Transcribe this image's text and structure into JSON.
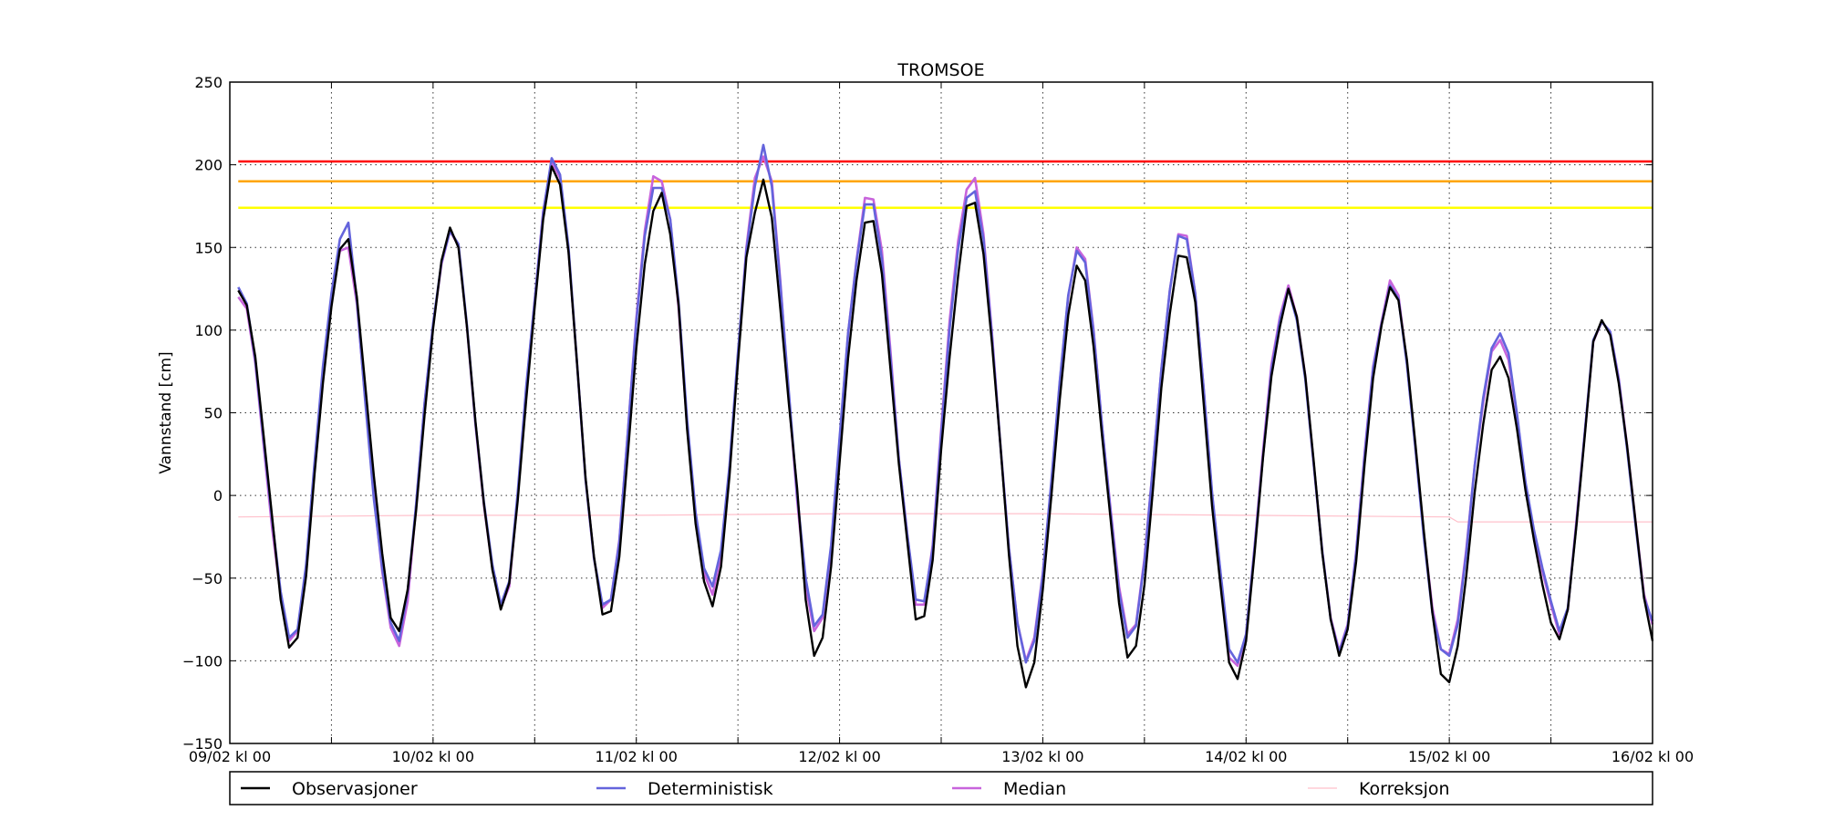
{
  "chart_data": {
    "type": "line",
    "title": "TROMSOE",
    "xlabel": "",
    "ylabel": "Vannstand [cm]",
    "ylim": [
      -150,
      250
    ],
    "xlim": [
      0,
      168
    ],
    "yticks": [
      -150,
      -100,
      -50,
      0,
      50,
      100,
      150,
      200,
      250
    ],
    "xticks": [
      0,
      24,
      48,
      72,
      96,
      120,
      144,
      168
    ],
    "xtick_labels": [
      "09/02 kl 00",
      "10/02 kl 00",
      "11/02 kl 00",
      "12/02 kl 00",
      "13/02 kl 00",
      "14/02 kl 00",
      "15/02 kl 00",
      "16/02 kl 00"
    ],
    "minor_xgrid": [
      12,
      36,
      60,
      84,
      108,
      132,
      156
    ],
    "grid": true,
    "legend_placement": "bottom",
    "thresholds": [
      {
        "value": 202,
        "color": "#ff0000"
      },
      {
        "value": 190,
        "color": "#ffa500"
      },
      {
        "value": 174,
        "color": "#ffff00"
      }
    ],
    "series": [
      {
        "name": "Observasjoner",
        "color": "#000000",
        "x": [
          1,
          2,
          3,
          4,
          5,
          6,
          7,
          8,
          9,
          10,
          11,
          12,
          13,
          14,
          15,
          16,
          17,
          18,
          19,
          20,
          21,
          22,
          23,
          24,
          25,
          26,
          27,
          28,
          29,
          30,
          31,
          32,
          33,
          34,
          35,
          36,
          37,
          38,
          39,
          40,
          41,
          42,
          43,
          44,
          45,
          46,
          47,
          48,
          49,
          50,
          51,
          52,
          53,
          54,
          55,
          56,
          57,
          58,
          59,
          60,
          61,
          62,
          63,
          64,
          65,
          66,
          67,
          68,
          69,
          70,
          71,
          72,
          73,
          74,
          75,
          76,
          77,
          78,
          79,
          80,
          81,
          82,
          83,
          84,
          85,
          86,
          87,
          88,
          89,
          90,
          91,
          92,
          93,
          94,
          95,
          96,
          97,
          98,
          99,
          100,
          101,
          102,
          103,
          104,
          105,
          106,
          107,
          108,
          109,
          110,
          111,
          112,
          113,
          114,
          115,
          116,
          117,
          118,
          119,
          120,
          121,
          122,
          123,
          124,
          125,
          126,
          127,
          128,
          129,
          130,
          131,
          132,
          133,
          134,
          135,
          136,
          137,
          138,
          139,
          140,
          141,
          142,
          143,
          144,
          145,
          146,
          147,
          148,
          149,
          150,
          151,
          152,
          153,
          154,
          155,
          156,
          157,
          158,
          159,
          160,
          161,
          162,
          163,
          164,
          165,
          166,
          167,
          168
        ],
        "values": [
          124,
          115,
          84,
          36,
          -13,
          -63,
          -92,
          -86,
          -49,
          13,
          68,
          114,
          149,
          155,
          120,
          66,
          12,
          -35,
          -74,
          -82,
          -57,
          -9,
          49,
          101,
          142,
          162,
          150,
          102,
          45,
          -5,
          -45,
          -69,
          -53,
          -3,
          58,
          114,
          167,
          199,
          188,
          147,
          80,
          11,
          -37,
          -72,
          -70,
          -37,
          25,
          89,
          140,
          172,
          183,
          158,
          115,
          40,
          -17,
          -52,
          -67,
          -43,
          12,
          80,
          144,
          171,
          191,
          168,
          113,
          56,
          4,
          -63,
          -97,
          -86,
          -43,
          20,
          83,
          130,
          165,
          166,
          134,
          77,
          19,
          -28,
          -75,
          -73,
          -39,
          28,
          84,
          133,
          175,
          177,
          146,
          92,
          30,
          -36,
          -91,
          -116,
          -101,
          -57,
          -1,
          58,
          109,
          139,
          130,
          90,
          36,
          -14,
          -65,
          -98,
          -91,
          -54,
          3,
          65,
          110,
          145,
          144,
          117,
          55,
          -7,
          -55,
          -101,
          -111,
          -88,
          -35,
          23,
          72,
          102,
          125,
          108,
          72,
          20,
          -35,
          -75,
          -97,
          -81,
          -40,
          19,
          71,
          103,
          126,
          118,
          82,
          31,
          -22,
          -71,
          -108,
          -113,
          -91,
          -49,
          2,
          43,
          76,
          84,
          71,
          40,
          3,
          -27,
          -54,
          -77,
          -87,
          -69,
          -19,
          36,
          93,
          106,
          97,
          68,
          30,
          -16,
          -62,
          -88
        ]
      },
      {
        "name": "Deterministisk",
        "color": "#6464dc",
        "x": [
          1,
          2,
          3,
          4,
          5,
          6,
          7,
          8,
          9,
          10,
          11,
          12,
          13,
          14,
          15,
          16,
          17,
          18,
          19,
          20,
          21,
          22,
          23,
          24,
          25,
          26,
          27,
          28,
          29,
          30,
          31,
          32,
          33,
          34,
          35,
          36,
          37,
          38,
          39,
          40,
          41,
          42,
          43,
          44,
          45,
          46,
          47,
          48,
          49,
          50,
          51,
          52,
          53,
          54,
          55,
          56,
          57,
          58,
          59,
          60,
          61,
          62,
          63,
          64,
          65,
          66,
          67,
          68,
          69,
          70,
          71,
          72,
          73,
          74,
          75,
          76,
          77,
          78,
          79,
          80,
          81,
          82,
          83,
          84,
          85,
          86,
          87,
          88,
          89,
          90,
          91,
          92,
          93,
          94,
          95,
          96,
          97,
          98,
          99,
          100,
          101,
          102,
          103,
          104,
          105,
          106,
          107,
          108,
          109,
          110,
          111,
          112,
          113,
          114,
          115,
          116,
          117,
          118,
          119,
          120,
          121,
          122,
          123,
          124,
          125,
          126,
          127,
          128,
          129,
          130,
          131,
          132,
          133,
          134,
          135,
          136,
          137,
          138,
          139,
          140,
          141,
          142,
          143,
          144,
          145,
          146,
          147,
          148,
          149,
          150,
          151,
          152,
          153,
          154,
          155,
          156,
          157,
          158,
          159,
          160,
          161,
          162,
          163,
          164,
          165,
          166,
          167,
          168
        ],
        "values": [
          126,
          116,
          82,
          33,
          -15,
          -58,
          -86,
          -81,
          -42,
          20,
          78,
          122,
          155,
          165,
          118,
          56,
          -2,
          -44,
          -77,
          -88,
          -58,
          -5,
          56,
          104,
          141,
          160,
          152,
          103,
          44,
          -4,
          -42,
          -66,
          -52,
          2,
          66,
          118,
          171,
          204,
          194,
          150,
          80,
          10,
          -38,
          -66,
          -63,
          -28,
          38,
          105,
          157,
          186,
          186,
          167,
          117,
          46,
          -10,
          -44,
          -55,
          -33,
          18,
          86,
          148,
          187,
          212,
          187,
          128,
          63,
          0,
          -50,
          -79,
          -72,
          -30,
          35,
          98,
          141,
          176,
          176,
          143,
          84,
          22,
          -24,
          -63,
          -64,
          -32,
          37,
          101,
          149,
          180,
          184,
          155,
          96,
          30,
          -32,
          -77,
          -101,
          -88,
          -48,
          8,
          69,
          121,
          148,
          141,
          99,
          42,
          -10,
          -58,
          -86,
          -79,
          -40,
          17,
          76,
          124,
          157,
          155,
          122,
          64,
          1,
          -47,
          -93,
          -101,
          -84,
          -32,
          24,
          76,
          106,
          125,
          106,
          70,
          18,
          -34,
          -75,
          -95,
          -79,
          -35,
          24,
          77,
          104,
          127,
          119,
          79,
          28,
          -26,
          -71,
          -93,
          -97,
          -78,
          -35,
          18,
          59,
          89,
          98,
          86,
          49,
          8,
          -21,
          -44,
          -64,
          -82,
          -68,
          -18,
          38,
          94,
          105,
          99,
          70,
          28,
          -18,
          -62,
          -76
        ]
      },
      {
        "name": "Median",
        "color": "#c864dc",
        "x": [
          1,
          2,
          3,
          4,
          5,
          6,
          7,
          8,
          9,
          10,
          11,
          12,
          13,
          14,
          15,
          16,
          17,
          18,
          19,
          20,
          21,
          22,
          23,
          24,
          25,
          26,
          27,
          28,
          29,
          30,
          31,
          32,
          33,
          34,
          35,
          36,
          37,
          38,
          39,
          40,
          41,
          42,
          43,
          44,
          45,
          46,
          47,
          48,
          49,
          50,
          51,
          52,
          53,
          54,
          55,
          56,
          57,
          58,
          59,
          60,
          61,
          62,
          63,
          64,
          65,
          66,
          67,
          68,
          69,
          70,
          71,
          72,
          73,
          74,
          75,
          76,
          77,
          78,
          79,
          80,
          81,
          82,
          83,
          84,
          85,
          86,
          87,
          88,
          89,
          90,
          91,
          92,
          93,
          94,
          95,
          96,
          97,
          98,
          99,
          100,
          101,
          102,
          103,
          104,
          105,
          106,
          107,
          108,
          109,
          110,
          111,
          112,
          113,
          114,
          115,
          116,
          117,
          118,
          119,
          120,
          121,
          122,
          123,
          124,
          125,
          126,
          127,
          128,
          129,
          130,
          131,
          132,
          133,
          134,
          135,
          136,
          137,
          138,
          139,
          140,
          141,
          142,
          143,
          144,
          145,
          146,
          147,
          148,
          149,
          150,
          151,
          152,
          153,
          154,
          155,
          156,
          157,
          158,
          159,
          160,
          161,
          162,
          163,
          164,
          165,
          166,
          167,
          168
        ],
        "values": [
          120,
          113,
          80,
          30,
          -20,
          -60,
          -88,
          -82,
          -45,
          18,
          74,
          120,
          148,
          150,
          116,
          58,
          0,
          -46,
          -80,
          -91,
          -64,
          -6,
          56,
          103,
          140,
          160,
          151,
          102,
          43,
          -6,
          -44,
          -68,
          -55,
          0,
          64,
          118,
          172,
          202,
          192,
          148,
          80,
          10,
          -38,
          -68,
          -63,
          -27,
          38,
          107,
          160,
          193,
          190,
          167,
          113,
          42,
          -12,
          -47,
          -60,
          -36,
          14,
          84,
          150,
          192,
          205,
          190,
          130,
          60,
          -3,
          -55,
          -82,
          -74,
          -32,
          33,
          98,
          142,
          180,
          179,
          148,
          88,
          22,
          -24,
          -66,
          -66,
          -30,
          40,
          106,
          154,
          185,
          192,
          158,
          98,
          30,
          -32,
          -77,
          -100,
          -86,
          -47,
          6,
          68,
          120,
          150,
          143,
          100,
          42,
          -8,
          -55,
          -84,
          -78,
          -38,
          17,
          76,
          124,
          158,
          157,
          122,
          64,
          0,
          -48,
          -98,
          -103,
          -84,
          -31,
          27,
          79,
          108,
          127,
          108,
          72,
          18,
          -34,
          -74,
          -94,
          -78,
          -34,
          26,
          78,
          105,
          130,
          121,
          80,
          29,
          -24,
          -68,
          -93,
          -96,
          -75,
          -33,
          18,
          56,
          87,
          94,
          82,
          48,
          7,
          -22,
          -46,
          -66,
          -84,
          -69,
          -16,
          38,
          93,
          105,
          99,
          71,
          30,
          -16,
          -60,
          -78
        ]
      },
      {
        "name": "Korreksjon",
        "color": "#ffc0cb",
        "x": [
          1,
          24,
          48,
          72,
          96,
          120,
          144,
          145,
          168
        ],
        "values": [
          -13,
          -12,
          -12,
          -11,
          -11,
          -12,
          -13,
          -16,
          -16
        ]
      }
    ]
  }
}
